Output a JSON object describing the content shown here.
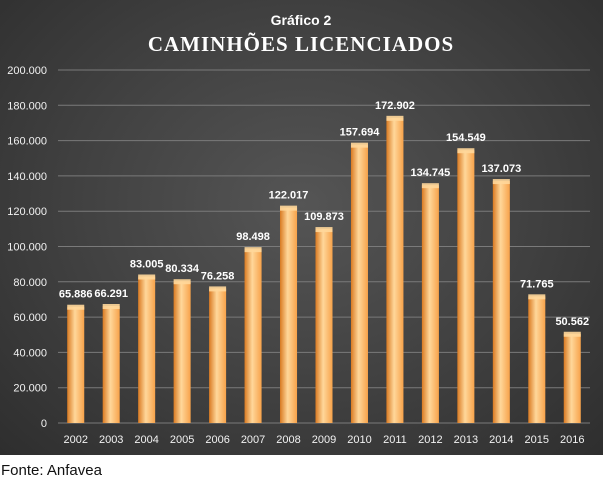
{
  "source": "Fonte: Anfavea",
  "chart_data": {
    "type": "bar",
    "subtitle": "Gráfico 2",
    "title": "CAMINHÕES LICENCIADOS",
    "xlabel": "",
    "ylabel": "",
    "ylim": [
      0,
      200000
    ],
    "yticks": [
      0,
      20000,
      40000,
      60000,
      80000,
      100000,
      120000,
      140000,
      160000,
      180000,
      200000
    ],
    "ytick_labels": [
      "0",
      "20.000",
      "40.000",
      "60.000",
      "80.000",
      "100.000",
      "120.000",
      "140.000",
      "160.000",
      "180.000",
      "200.000"
    ],
    "grid": true,
    "categories": [
      "2002",
      "2003",
      "2004",
      "2005",
      "2006",
      "2007",
      "2008",
      "2009",
      "2010",
      "2011",
      "2012",
      "2013",
      "2014",
      "2015",
      "2016"
    ],
    "values": [
      65886,
      66291,
      83005,
      80334,
      76258,
      98498,
      122017,
      109873,
      157694,
      172902,
      134745,
      154549,
      137073,
      71765,
      50562
    ],
    "value_labels": [
      "65.886",
      "66.291",
      "83.005",
      "80.334",
      "76.258",
      "98.498",
      "122.017",
      "109.873",
      "157.694",
      "172.902",
      "134.745",
      "154.549",
      "137.073",
      "71.765",
      "50.562"
    ],
    "colors": {
      "bar": "#f7a24a",
      "bar_light": "#ffd79a",
      "bar_dark": "#d97a22",
      "text": "#ffffff",
      "axis_text": "#f2f2f2",
      "grid": "#7a7a7a"
    }
  }
}
